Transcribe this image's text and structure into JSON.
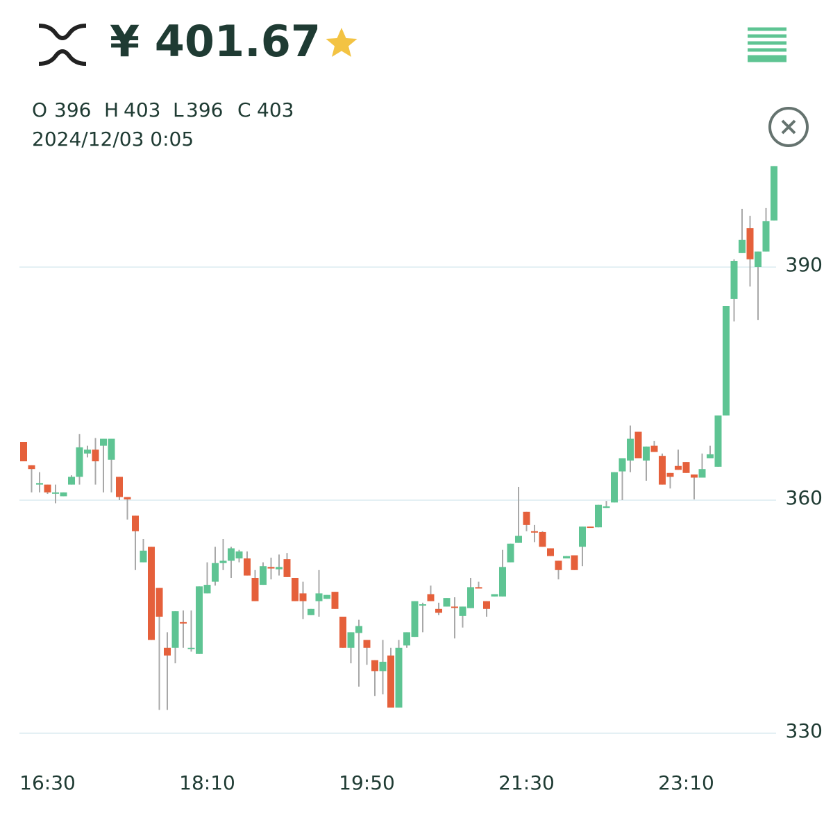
{
  "header": {
    "price": "¥ 401.67",
    "ohlc": [
      {
        "label": "O",
        "value": 396
      },
      {
        "label": "H",
        "value": 403
      },
      {
        "label": "L",
        "value": 396
      },
      {
        "label": "C",
        "value": 403
      }
    ],
    "datetime": "2024/12/03 0:05"
  },
  "chart_data": {
    "type": "candlestick",
    "categories": [
      null,
      null,
      null,
      "16:30",
      null,
      null,
      null,
      null,
      null,
      null,
      null,
      null,
      null,
      null,
      null,
      null,
      null,
      null,
      null,
      null,
      null,
      null,
      null,
      "18:10",
      null,
      null,
      null,
      null,
      null,
      null,
      null,
      null,
      null,
      null,
      null,
      null,
      null,
      null,
      null,
      null,
      null,
      null,
      null,
      "19:50",
      null,
      null,
      null,
      null,
      null,
      null,
      null,
      null,
      null,
      null,
      null,
      null,
      null,
      null,
      null,
      null,
      null,
      null,
      null,
      "21:30",
      null,
      null,
      null,
      null,
      null,
      null,
      null,
      null,
      null,
      null,
      null,
      null,
      null,
      null,
      null,
      null,
      null,
      null,
      null,
      "23:10",
      null,
      null,
      null,
      null,
      null,
      null,
      null,
      null,
      null,
      null,
      null
    ],
    "series": [
      {
        "up_color": "#5ec493",
        "down_color": "#e5603b",
        "wick_color": "#a8a8a8",
        "open": [
          367.5,
          364.5,
          362,
          362,
          361,
          360.5,
          362,
          363,
          366,
          366.5,
          367,
          365.2,
          363,
          360.4,
          358,
          352,
          354,
          348.7,
          341,
          341,
          344.3,
          341,
          340.2,
          348,
          349.5,
          351.9,
          352.2,
          352.5,
          352.5,
          350,
          349.1,
          351.4,
          351.1,
          352.4,
          350,
          348,
          345.2,
          347,
          347.3,
          348.2,
          345,
          341,
          342.9,
          342,
          339.4,
          338,
          340,
          333.3,
          341.3,
          342.4,
          346.5,
          347.9,
          346,
          346.3,
          346.3,
          345.1,
          346.1,
          348.8,
          347,
          347.6,
          347.6,
          352,
          354.5,
          358.5,
          356,
          355.9,
          353.8,
          352.2,
          352.5,
          352.9,
          354,
          356.6,
          356.5,
          359,
          359.7,
          363.7,
          365.1,
          368.8,
          365.1,
          367,
          365.7,
          363.5,
          364.4,
          364.9,
          363.3,
          362.9,
          365.4,
          364.3,
          370.9,
          385.9,
          391.8,
          395,
          390,
          392,
          396
        ],
        "high": [
          367.5,
          364.5,
          363.6,
          362,
          362,
          361,
          363.2,
          368.5,
          367,
          368,
          367.9,
          367.9,
          363,
          360.4,
          358,
          355,
          354,
          348.7,
          343,
          345.7,
          345.8,
          345.8,
          348.9,
          352,
          354,
          355,
          354,
          353.6,
          353.4,
          351,
          352,
          352.6,
          353,
          353.2,
          350,
          349.5,
          346,
          351,
          347.8,
          348.2,
          345,
          343,
          344.6,
          342,
          339.4,
          342,
          341,
          342,
          343,
          347,
          346.8,
          349,
          346.8,
          347.4,
          347.5,
          346.3,
          350,
          349.5,
          347,
          347.9,
          353.6,
          354.4,
          361.7,
          358.5,
          356.8,
          356,
          353.8,
          352.2,
          352.8,
          352.9,
          356.6,
          356.6,
          359.4,
          359.9,
          363.6,
          365.4,
          369.6,
          368.8,
          366.9,
          367.6,
          366,
          363.5,
          366.5,
          364.9,
          363.3,
          366,
          367,
          370.9,
          385,
          391,
          397.5,
          396.6,
          392,
          397.6,
          403
        ],
        "low": [
          365,
          361,
          361,
          360.8,
          359.6,
          360.5,
          362,
          362,
          365.5,
          362,
          361,
          361,
          360,
          357.5,
          351,
          352,
          342,
          333,
          333,
          339,
          341,
          340.5,
          340.2,
          348,
          349,
          351,
          350,
          352,
          350.3,
          347,
          349.1,
          349.8,
          350.3,
          350.1,
          347,
          344.7,
          345.2,
          345,
          347.3,
          346,
          341,
          339,
          336,
          338.8,
          334.8,
          335,
          333.3,
          333.3,
          341,
          342.4,
          343,
          347,
          345.2,
          346.3,
          342.2,
          343.6,
          346.1,
          348.7,
          345,
          347.6,
          347.6,
          352,
          354.5,
          356,
          354.6,
          354,
          352.8,
          349.8,
          352.5,
          351,
          351.5,
          356.5,
          356.5,
          359,
          359.7,
          360,
          363.6,
          365.4,
          362.5,
          366.2,
          362,
          361.5,
          363.9,
          363.5,
          360.1,
          362.9,
          365.4,
          364.3,
          370.9,
          383,
          391.8,
          387.5,
          383.2,
          392,
          396
        ],
        "close": [
          365,
          364,
          362.2,
          361,
          361,
          361,
          363,
          366.8,
          366.5,
          365,
          367.9,
          367.9,
          360.4,
          360.1,
          356,
          353.5,
          342,
          345,
          340,
          345.7,
          344.2,
          341,
          348.9,
          349.1,
          351.9,
          352.2,
          353.8,
          353.4,
          350.3,
          347,
          351.5,
          351.2,
          351.4,
          350.1,
          347,
          347,
          346,
          348,
          347.8,
          346,
          341,
          343,
          343.8,
          341,
          338,
          339.2,
          333.3,
          341,
          343,
          347,
          346.6,
          347,
          345.5,
          347.4,
          346.2,
          346.3,
          348.8,
          348.7,
          346,
          347.9,
          351.4,
          354.4,
          355.4,
          356.8,
          355.9,
          354,
          352.8,
          351,
          352.8,
          351,
          356.6,
          356.5,
          359.4,
          359.2,
          363.6,
          365.4,
          367.9,
          365.4,
          366.9,
          366.2,
          362,
          363,
          363.9,
          363.5,
          362.9,
          364,
          365.9,
          370.9,
          385,
          390.8,
          393.5,
          391,
          392,
          395.9,
          403
        ]
      }
    ],
    "ylim": [
      327,
      404
    ],
    "yticks": [
      330,
      360,
      390
    ],
    "grid": true,
    "grid_color": "#dcebf0"
  }
}
